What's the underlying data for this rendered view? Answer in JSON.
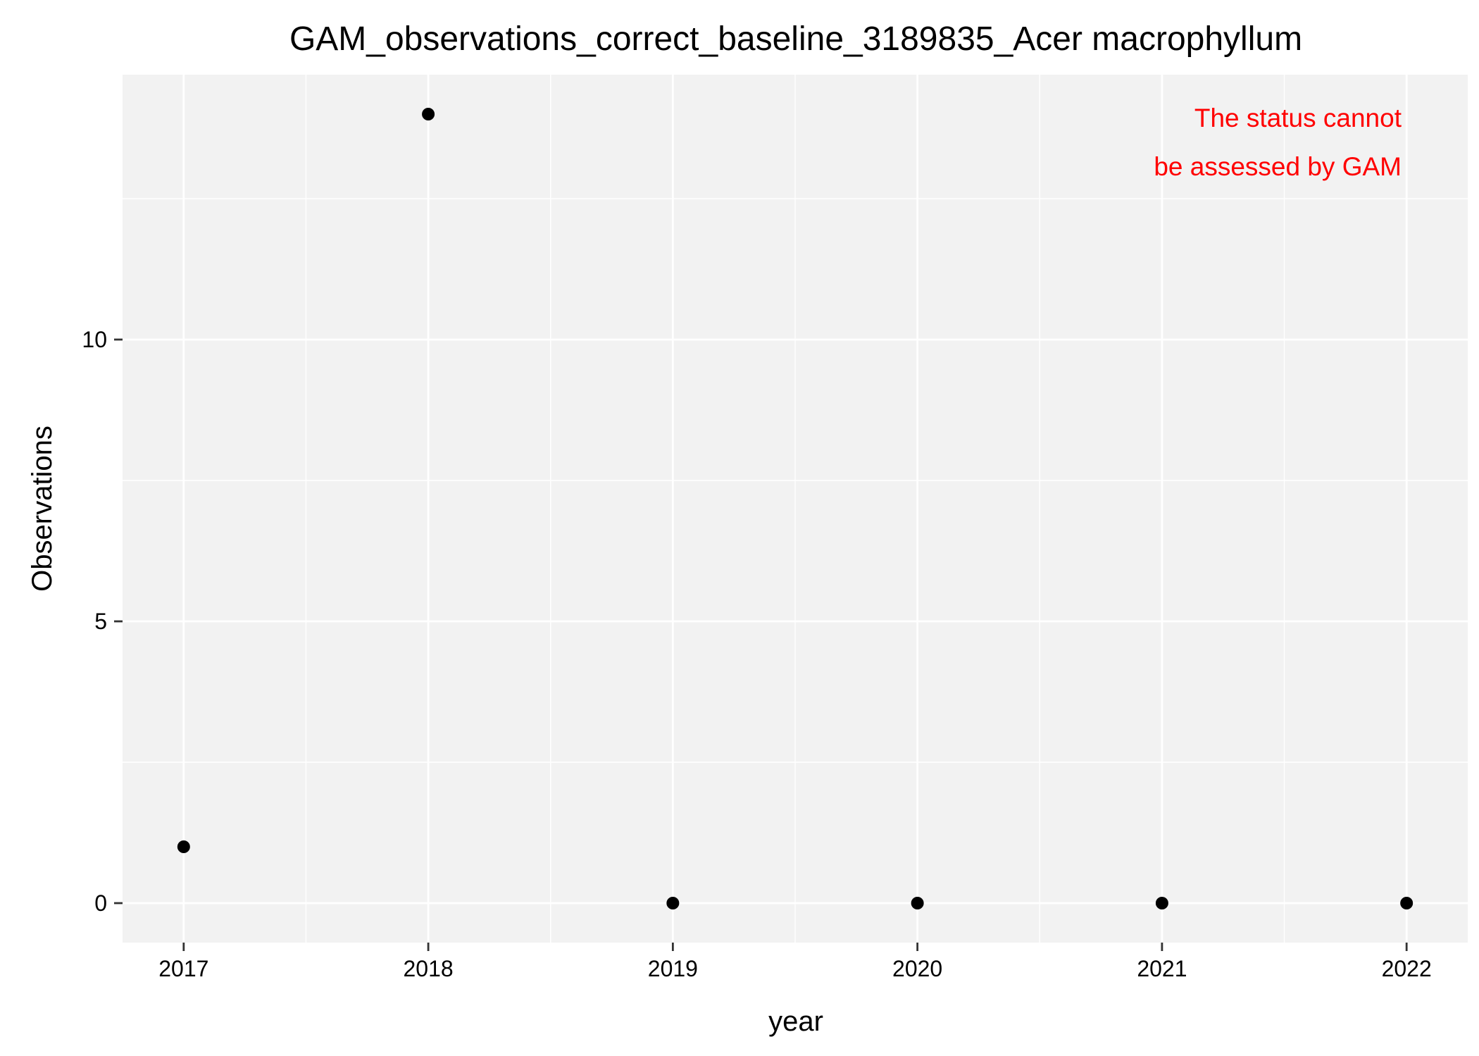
{
  "chart_data": {
    "type": "scatter",
    "title": "GAM_observations_correct_baseline_3189835_Acer macrophyllum",
    "xlabel": "year",
    "ylabel": "Observations",
    "x": [
      2017,
      2018,
      2019,
      2020,
      2021,
      2022
    ],
    "y": [
      1,
      14,
      0,
      0,
      0,
      0
    ],
    "x_ticks": [
      "2017",
      "2018",
      "2019",
      "2020",
      "2021",
      "2022"
    ],
    "y_ticks": [
      "0",
      "5",
      "10"
    ],
    "y_tick_values": [
      0,
      5,
      10
    ],
    "xlim": [
      2016.75,
      2022.25
    ],
    "ylim": [
      -0.7,
      14.7
    ],
    "grid": true,
    "annotation": {
      "lines": [
        "The status cannot",
        "be assessed by GAM"
      ],
      "color": "#ff0000",
      "placement": "top-right"
    },
    "panel_color": "#f2f2f2",
    "grid_color": "#ffffff",
    "point_color": "#000000"
  }
}
